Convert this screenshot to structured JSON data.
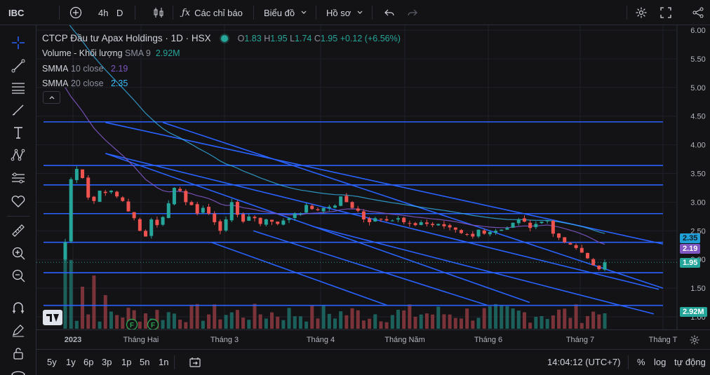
{
  "topbar": {
    "symbol": "IBC",
    "interval": "4h",
    "interval_type": "D",
    "indicators_label": "Các chỉ báo",
    "chart_label": "Biểu đồ",
    "profile_label": "Hồ sơ"
  },
  "legend": {
    "title": "CTCP Đầu tư Apax Holdings · 1D · HSX",
    "o_label": "O",
    "o": "1.83",
    "h_label": "H",
    "h": "1.95",
    "l_label": "L",
    "l": "1.74",
    "c_label": "C",
    "c": "1.95",
    "change": "+0.12 (+6.56%)",
    "vol_name": "Volume - Khối lượng",
    "vol_param": "SMA 9",
    "vol_value": "2.92M",
    "ma10_name": "SMMA",
    "ma10_param": "10 close",
    "ma10_value": "2.19",
    "ma20_name": "SMMA",
    "ma20_param": "20 close",
    "ma20_value": "2.35"
  },
  "badges": {
    "ma20": "2.35",
    "ma10": "2.19",
    "price": "1.95",
    "volume": "2.92M"
  },
  "time_labels": [
    "2023",
    "Tháng Hai",
    "Tháng 3",
    "Tháng 4",
    "Tháng Năm",
    "Tháng 6",
    "Tháng 7",
    "Tháng T"
  ],
  "bottombar": {
    "ranges": [
      "5y",
      "1y",
      "6p",
      "3p",
      "1p",
      "5n",
      "1n"
    ],
    "time": "14:04:12 (UTC+7)",
    "percent": "%",
    "log": "log",
    "auto": "tự động"
  },
  "colors": {
    "up": "#26a69a",
    "down": "#ef5350",
    "ma10": "#7e57c2",
    "ma20": "#38bdf8",
    "trendline": "#2962ff",
    "background": "#131316"
  },
  "chart_data": {
    "type": "candlestick",
    "title": "CTCP Đầu tư Apax Holdings · 1D · HSX",
    "ylim": [
      1.0,
      6.0
    ],
    "y_ticks": [
      6.0,
      5.5,
      5.0,
      4.5,
      4.0,
      3.5,
      3.0,
      2.5,
      2.0,
      1.5,
      1.0
    ],
    "y_tick_labels": [
      "6.00",
      "5.50",
      "5.00",
      "4.50",
      "4.00",
      "3.50",
      "3.00",
      "2.50",
      "2.00",
      "1.50",
      "1.00"
    ],
    "x_labels": [
      "2023",
      "Tháng Hai",
      "Tháng 3",
      "Tháng 4",
      "Tháng Năm",
      "Tháng 6",
      "Tháng 7",
      "Tháng T"
    ],
    "last": {
      "open": 1.83,
      "high": 1.95,
      "low": 1.74,
      "close": 1.95,
      "change": 0.12,
      "change_pct": 6.56
    },
    "horizontal_levels": [
      4.4,
      3.64,
      3.3,
      2.8,
      2.3,
      1.77,
      1.2
    ],
    "close": [
      2.3,
      3.4,
      3.58,
      3.42,
      3.08,
      3.02,
      3.2,
      3.16,
      3.2,
      3.1,
      3.02,
      2.84,
      2.72,
      2.5,
      2.4,
      2.7,
      2.6,
      2.74,
      2.98,
      3.25,
      3.2,
      3.0,
      2.95,
      2.8,
      2.9,
      2.8,
      2.65,
      2.5,
      2.7,
      3.0,
      2.78,
      2.66,
      2.75,
      2.72,
      2.62,
      2.7,
      2.66,
      2.62,
      2.68,
      2.72,
      2.8,
      2.8,
      2.95,
      2.88,
      2.86,
      2.9,
      2.92,
      2.94,
      3.1,
      3.0,
      2.9,
      2.85,
      2.7,
      2.65,
      2.72,
      2.7,
      2.68,
      2.68,
      2.72,
      2.65,
      2.63,
      2.6,
      2.65,
      2.62,
      2.6,
      2.62,
      2.58,
      2.56,
      2.52,
      2.46,
      2.43,
      2.4,
      2.52,
      2.45,
      2.48,
      2.5,
      2.52,
      2.55,
      2.64,
      2.7,
      2.66,
      2.55,
      2.62,
      2.66,
      2.68,
      2.45,
      2.38,
      2.3,
      2.26,
      2.2,
      2.12,
      2.02,
      1.9,
      1.83,
      1.95
    ],
    "volume_bars": 95,
    "volume_latest": "2.92M",
    "series": [
      {
        "name": "SMMA 10 close",
        "last": 2.19
      },
      {
        "name": "SMMA 20 close",
        "last": 2.35
      },
      {
        "name": "Volume - Khối lượng SMA 9",
        "last": "2.92M"
      }
    ]
  }
}
